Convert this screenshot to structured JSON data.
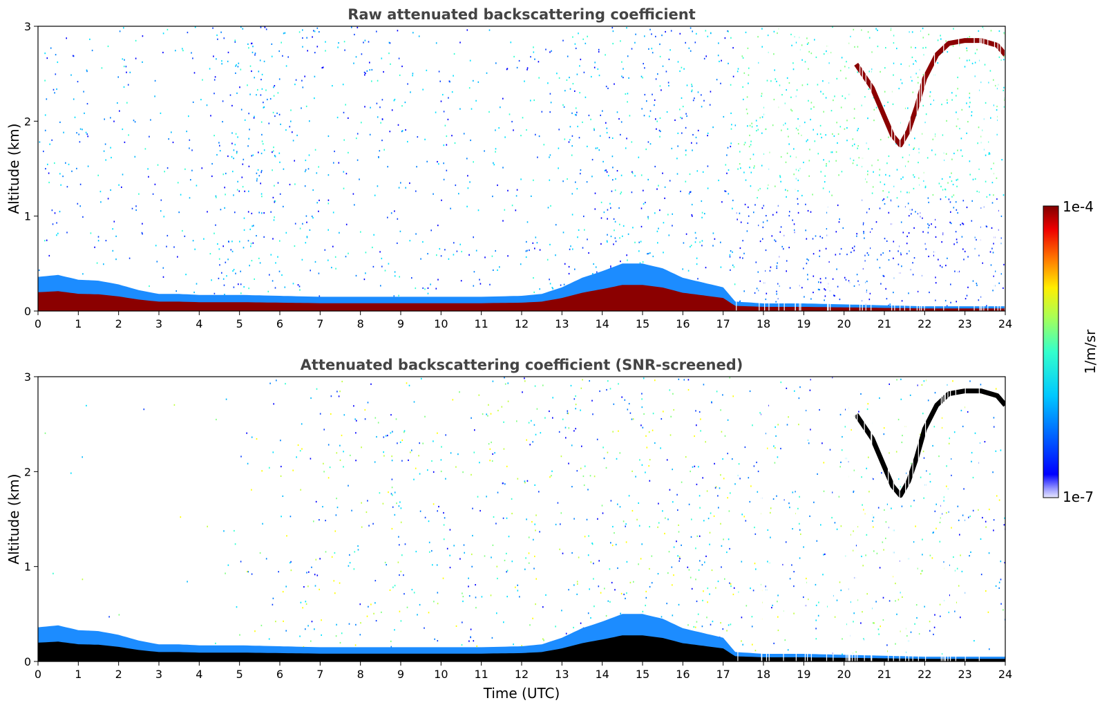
{
  "chart_data": [
    {
      "type": "heatmap",
      "title": "Raw attenuated backscattering coefficient",
      "xlabel": "",
      "ylabel": "Altitude (km)",
      "xlim": [
        0,
        24
      ],
      "ylim": [
        0,
        3
      ],
      "x_ticks": [
        "0",
        "1",
        "2",
        "3",
        "4",
        "5",
        "6",
        "7",
        "8",
        "9",
        "10",
        "11",
        "12",
        "13",
        "14",
        "15",
        "16",
        "17",
        "18",
        "19",
        "20",
        "21",
        "22",
        "23",
        "24"
      ],
      "y_ticks": [
        "0",
        "1",
        "2",
        "3"
      ],
      "color_scale": "log",
      "boundary_layer_top_km": [
        [
          0,
          0.36
        ],
        [
          0.5,
          0.38
        ],
        [
          1,
          0.33
        ],
        [
          1.5,
          0.32
        ],
        [
          2,
          0.28
        ],
        [
          2.5,
          0.22
        ],
        [
          3,
          0.18
        ],
        [
          3.5,
          0.18
        ],
        [
          4,
          0.17
        ],
        [
          5,
          0.17
        ],
        [
          6,
          0.16
        ],
        [
          7,
          0.15
        ],
        [
          8,
          0.15
        ],
        [
          9,
          0.15
        ],
        [
          10,
          0.15
        ],
        [
          11,
          0.15
        ],
        [
          12,
          0.16
        ],
        [
          12.5,
          0.18
        ],
        [
          13,
          0.25
        ],
        [
          13.5,
          0.35
        ],
        [
          14,
          0.42
        ],
        [
          14.5,
          0.5
        ],
        [
          15,
          0.5
        ],
        [
          15.5,
          0.45
        ],
        [
          16,
          0.35
        ],
        [
          16.5,
          0.3
        ],
        [
          17,
          0.25
        ],
        [
          17.3,
          0.1
        ],
        [
          18,
          0.08
        ],
        [
          19,
          0.08
        ],
        [
          20,
          0.07
        ],
        [
          21,
          0.06
        ],
        [
          22,
          0.05
        ],
        [
          23,
          0.05
        ],
        [
          24,
          0.05
        ]
      ],
      "cloud_layers": [
        {
          "time_utc": [
            20.3,
            20.7,
            21.0,
            21.2,
            21.4,
            21.6,
            21.8,
            22.0,
            22.3,
            22.6,
            23.0,
            23.4,
            23.8,
            24.0
          ],
          "altitude_km": [
            2.6,
            2.35,
            2.05,
            1.85,
            1.75,
            1.9,
            2.15,
            2.45,
            2.7,
            2.82,
            2.85,
            2.85,
            2.8,
            2.7
          ]
        }
      ],
      "colors": {
        "low": "#0000ff",
        "mid": "#00e5ff",
        "high_mid": "#ffff00",
        "high": "#8b0000"
      }
    },
    {
      "type": "heatmap",
      "title": "Attenuated backscattering coefficient (SNR-screened)",
      "xlabel": "Time (UTC)",
      "ylabel": "Altitude (km)",
      "xlim": [
        0,
        24
      ],
      "ylim": [
        0,
        3
      ],
      "x_ticks": [
        "0",
        "1",
        "2",
        "3",
        "4",
        "5",
        "6",
        "7",
        "8",
        "9",
        "10",
        "11",
        "12",
        "13",
        "14",
        "15",
        "16",
        "17",
        "18",
        "19",
        "20",
        "21",
        "22",
        "23",
        "24"
      ],
      "y_ticks": [
        "0",
        "1",
        "2",
        "3"
      ],
      "color_scale": "log",
      "boundary_layer_top_km": [
        [
          0,
          0.36
        ],
        [
          0.5,
          0.38
        ],
        [
          1,
          0.33
        ],
        [
          1.5,
          0.32
        ],
        [
          2,
          0.28
        ],
        [
          2.5,
          0.22
        ],
        [
          3,
          0.18
        ],
        [
          3.5,
          0.18
        ],
        [
          4,
          0.17
        ],
        [
          5,
          0.17
        ],
        [
          6,
          0.16
        ],
        [
          7,
          0.15
        ],
        [
          8,
          0.15
        ],
        [
          9,
          0.15
        ],
        [
          10,
          0.15
        ],
        [
          11,
          0.15
        ],
        [
          12,
          0.16
        ],
        [
          12.5,
          0.18
        ],
        [
          13,
          0.25
        ],
        [
          13.5,
          0.35
        ],
        [
          14,
          0.42
        ],
        [
          14.5,
          0.5
        ],
        [
          15,
          0.5
        ],
        [
          15.5,
          0.45
        ],
        [
          16,
          0.35
        ],
        [
          16.5,
          0.3
        ],
        [
          17,
          0.25
        ],
        [
          17.3,
          0.1
        ],
        [
          18,
          0.08
        ],
        [
          19,
          0.08
        ],
        [
          20,
          0.07
        ],
        [
          21,
          0.06
        ],
        [
          22,
          0.05
        ],
        [
          23,
          0.05
        ],
        [
          24,
          0.05
        ]
      ],
      "cloud_layers": [
        {
          "time_utc": [
            20.3,
            20.7,
            21.0,
            21.2,
            21.4,
            21.6,
            21.8,
            22.0,
            22.3,
            22.6,
            23.0,
            23.4,
            23.8,
            24.0
          ],
          "altitude_km": [
            2.6,
            2.35,
            2.05,
            1.85,
            1.75,
            1.9,
            2.15,
            2.45,
            2.7,
            2.82,
            2.85,
            2.85,
            2.8,
            2.7
          ]
        }
      ],
      "colors": {
        "low": "#0000ff",
        "mid": "#00e5ff",
        "high_mid": "#ffff00",
        "high": "#000000"
      }
    }
  ],
  "colorbar": {
    "label": "1/m/sr",
    "max_label": "1e-4",
    "min_label": "1e-7",
    "range": [
      1e-07,
      0.0001
    ],
    "scale": "log",
    "colormap": "jet"
  }
}
